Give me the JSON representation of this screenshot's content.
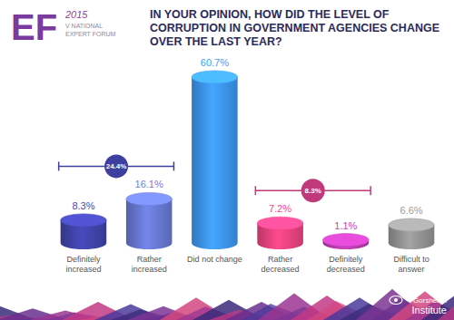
{
  "logo": {
    "text": "EF",
    "year": "2015",
    "lines": [
      "V NATIONAL",
      "EXPERT FORUM"
    ]
  },
  "chart_data": {
    "type": "bar",
    "title": "IN YOUR OPINION, HOW DID THE LEVEL OF CORRUPTION IN GOVERNMENT AGENCIES CHANGE OVER THE LAST YEAR?",
    "categories": [
      "Definitely increased",
      "Rather increased",
      "Did not change",
      "Rather decreased",
      "Definitely decreased",
      "Difficult to answer"
    ],
    "values": [
      8.3,
      16.1,
      60.7,
      7.2,
      1.1,
      6.6
    ],
    "value_labels": [
      "8.3%",
      "16.1%",
      "60.7%",
      "7.2%",
      "1.1%",
      "6.6%"
    ],
    "colors": [
      "#3d40a0",
      "#6373c8",
      "#3a8ee6",
      "#e0407a",
      "#b03aa6",
      "#8c8c8c"
    ],
    "data_labels": true,
    "tick_labels": "x",
    "annotations": [
      {
        "text": "24.4%",
        "categories": [
          "Definitely increased",
          "Rather increased"
        ],
        "color": "#3d40a0"
      },
      {
        "text": "8.3%",
        "categories": [
          "Rather decreased",
          "Definitely decreased"
        ],
        "color": "#c0397a"
      }
    ]
  },
  "footer": {
    "lines": [
      "Gorshenin",
      "Institute"
    ]
  }
}
